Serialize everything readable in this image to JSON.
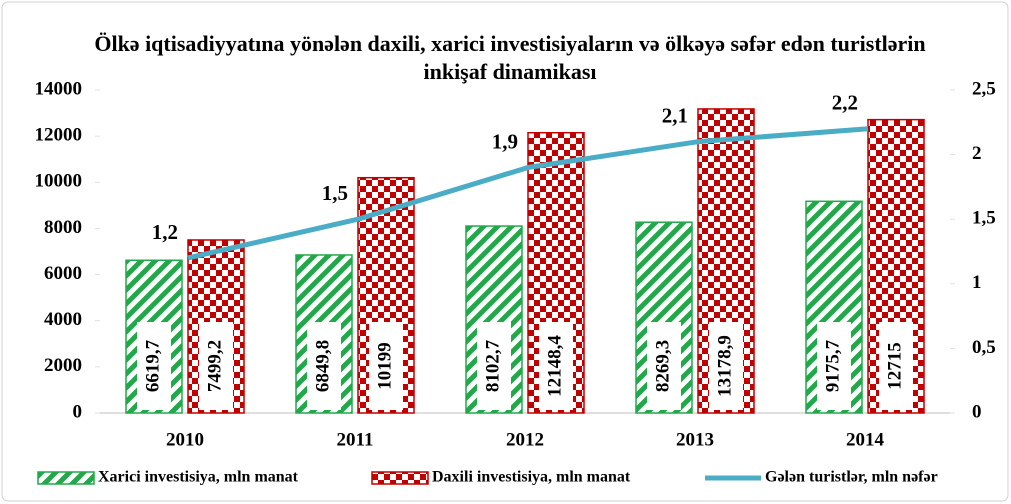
{
  "chart_data": {
    "type": "bar",
    "title": "Ölkə iqtisadiyyatına yönələn daxili, xarici investisiyaların və  ölkəyə səfər edən turistlərin inkişaf dinamikası",
    "categories": [
      "2010",
      "2011",
      "2012",
      "2013",
      "2014"
    ],
    "series": [
      {
        "name": "Xarici investisiya, mln manat",
        "type": "bar",
        "color": "#22a84a",
        "values": [
          6619.7,
          6849.8,
          8102.7,
          8269.3,
          9175.7
        ],
        "value_labels": [
          "6619,7",
          "6849,8",
          "8102,7",
          "8269,3",
          "9175,7"
        ]
      },
      {
        "name": "Daxili investisiya, mln manat",
        "type": "bar",
        "color": "#c00000",
        "values": [
          7499.2,
          10199,
          12148.4,
          13178.9,
          12715
        ],
        "value_labels": [
          "7499,2",
          "10199",
          "12148,4",
          "13178,9",
          "12715"
        ]
      },
      {
        "name": "Gələn turistlər, mln nəfər",
        "type": "line",
        "axis": "y2",
        "color": "#4bacc6",
        "values": [
          1.2,
          1.5,
          1.9,
          2.1,
          2.2
        ],
        "value_labels": [
          "1,2",
          "1,5",
          "1,9",
          "2,1",
          "2,2"
        ]
      }
    ],
    "ylim": [
      0,
      14000
    ],
    "yticks": [
      0,
      2000,
      4000,
      6000,
      8000,
      10000,
      12000,
      14000
    ],
    "y2lim": [
      0,
      2.5
    ],
    "y2ticks": [
      0,
      {
        "value": 0.5,
        "label": "0,5"
      },
      1,
      {
        "value": 1.5,
        "label": "1,5"
      },
      2,
      {
        "value": 2.5,
        "label": "2,5"
      }
    ],
    "grid": false,
    "legend": "bottom"
  }
}
